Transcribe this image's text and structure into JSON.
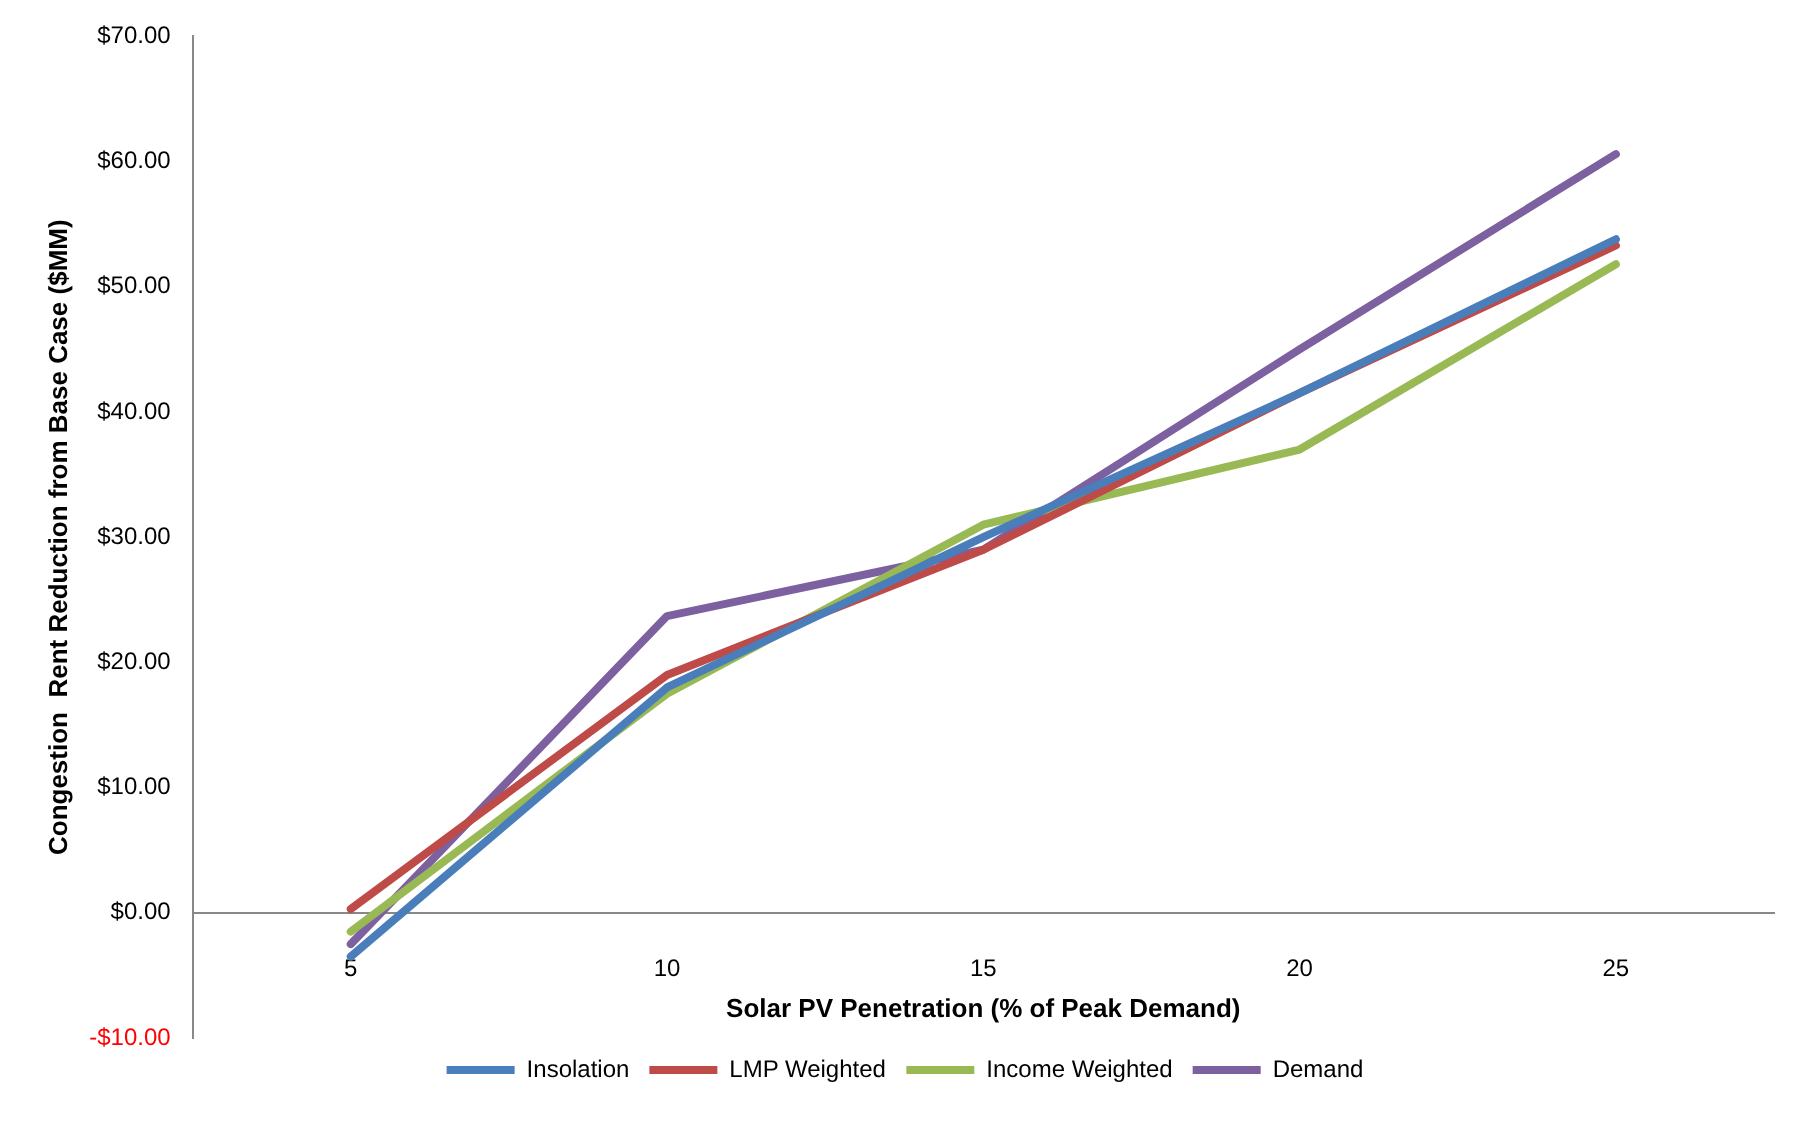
{
  "chart_data": {
    "type": "line",
    "xlabel": "Solar PV Penetration (% of Peak Demand)",
    "ylabel": "Congestion  Rent Reduction from Base Case ($MM)",
    "categories": [
      "5",
      "10",
      "15",
      "20",
      "25"
    ],
    "series": [
      {
        "name": "Insolation",
        "color": "#4a7ebb",
        "values": [
          -3.5,
          18,
          30,
          41.5,
          53.8
        ]
      },
      {
        "name": "LMP Weighted",
        "color": "#be4b48",
        "values": [
          0.3,
          19,
          29,
          41.5,
          53.3
        ]
      },
      {
        "name": "Income Weighted",
        "color": "#98b954",
        "values": [
          -1.5,
          17.5,
          31,
          37,
          51.8
        ]
      },
      {
        "name": "Demand",
        "color": "#7d60a0",
        "values": [
          -2.5,
          23.7,
          29,
          45,
          60.6
        ]
      }
    ],
    "ylim": [
      -10,
      70
    ],
    "yticks": [
      {
        "value": -10,
        "label": "-$10.00"
      },
      {
        "value": 0,
        "label": "$0.00"
      },
      {
        "value": 10,
        "label": "$10.00"
      },
      {
        "value": 20,
        "label": "$20.00"
      },
      {
        "value": 30,
        "label": "$30.00"
      },
      {
        "value": 40,
        "label": "$40.00"
      },
      {
        "value": 50,
        "label": "$50.00"
      },
      {
        "value": 60,
        "label": "$60.00"
      },
      {
        "value": 70,
        "label": "$70.00"
      }
    ],
    "grid": false,
    "legend": "bottom",
    "marker": "none",
    "line_style": "solid"
  }
}
